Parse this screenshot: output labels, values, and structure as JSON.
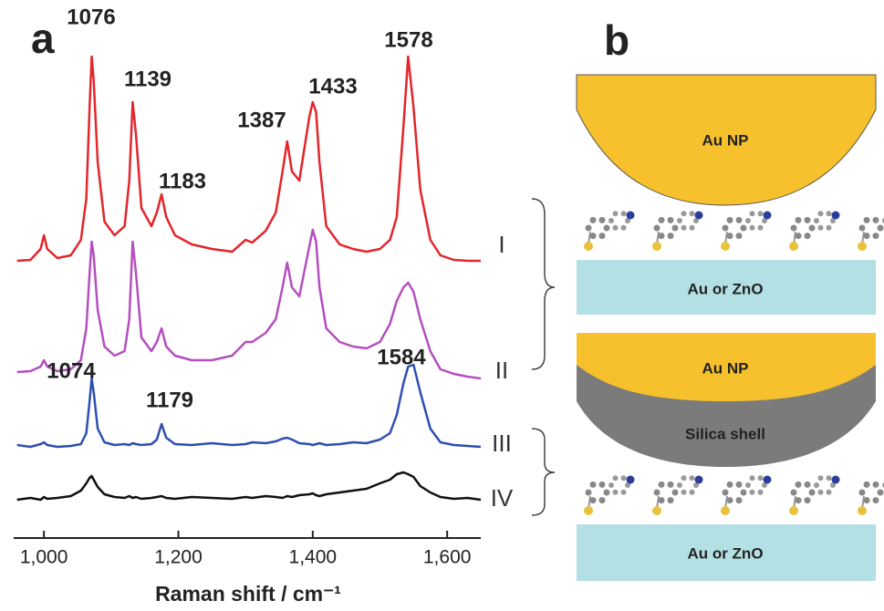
{
  "chart_data": {
    "type": "line",
    "panel_label": "a",
    "x_label": "Raman shift / cm⁻¹",
    "xlim": [
      955,
      1650
    ],
    "xticks": [
      {
        "value": 1000,
        "label": "1,000"
      },
      {
        "value": 1200,
        "label": "1,200"
      },
      {
        "value": 1400,
        "label": "1,400"
      },
      {
        "value": 1600,
        "label": "1,600"
      }
    ],
    "x": [
      960,
      980,
      995,
      1000,
      1005,
      1020,
      1040,
      1055,
      1063,
      1068,
      1071,
      1074,
      1080,
      1090,
      1105,
      1120,
      1127,
      1132,
      1137,
      1145,
      1160,
      1168,
      1175,
      1182,
      1195,
      1220,
      1250,
      1280,
      1300,
      1310,
      1330,
      1345,
      1355,
      1362,
      1369,
      1380,
      1395,
      1400,
      1405,
      1410,
      1420,
      1440,
      1460,
      1480,
      1500,
      1515,
      1525,
      1535,
      1542,
      1550,
      1560,
      1575,
      1590,
      1610,
      1630,
      1650
    ],
    "series": [
      {
        "name": "I",
        "color": "#e3262b",
        "values": [
          2,
          3,
          15,
          30,
          15,
          5,
          8,
          25,
          70,
          170,
          226,
          200,
          110,
          45,
          30,
          40,
          90,
          176,
          140,
          60,
          40,
          55,
          75,
          50,
          30,
          20,
          15,
          12,
          25,
          22,
          35,
          55,
          100,
          133,
          100,
          90,
          160,
          176,
          165,
          110,
          40,
          20,
          15,
          12,
          15,
          25,
          50,
          150,
          226,
          170,
          80,
          25,
          8,
          3,
          2,
          2
        ]
      },
      {
        "name": "II",
        "color": "#b44fc0",
        "values": [
          2,
          3,
          8,
          15,
          8,
          3,
          5,
          15,
          50,
          110,
          145,
          130,
          70,
          30,
          20,
          25,
          60,
          145,
          110,
          40,
          25,
          35,
          50,
          30,
          20,
          15,
          15,
          20,
          35,
          35,
          45,
          60,
          95,
          122,
          95,
          85,
          140,
          158,
          145,
          95,
          50,
          35,
          30,
          28,
          35,
          55,
          80,
          95,
          100,
          90,
          60,
          25,
          5,
          0,
          -3,
          -5
        ]
      },
      {
        "name": "III",
        "color": "#2e4fb0",
        "values": [
          2,
          0,
          3,
          5,
          2,
          0,
          1,
          3,
          15,
          50,
          75,
          60,
          20,
          5,
          2,
          3,
          2,
          4,
          3,
          2,
          3,
          8,
          25,
          10,
          3,
          2,
          4,
          2,
          3,
          5,
          4,
          6,
          9,
          10,
          8,
          4,
          3,
          2,
          3,
          4,
          2,
          3,
          5,
          4,
          8,
          15,
          35,
          70,
          88,
          90,
          60,
          20,
          5,
          2,
          1,
          0
        ]
      },
      {
        "name": "IV",
        "color": "#111111",
        "values": [
          0,
          2,
          0,
          3,
          1,
          2,
          4,
          10,
          18,
          24,
          26,
          22,
          14,
          6,
          3,
          2,
          4,
          2,
          3,
          1,
          2,
          3,
          4,
          2,
          1,
          3,
          2,
          1,
          3,
          2,
          4,
          3,
          2,
          4,
          3,
          5,
          6,
          7,
          5,
          4,
          6,
          8,
          10,
          12,
          18,
          22,
          28,
          30,
          28,
          25,
          15,
          8,
          3,
          1,
          2,
          0
        ]
      }
    ],
    "annotations": [
      1076,
      1139,
      1183,
      1387,
      1433,
      1578,
      1074,
      1179,
      1584
    ]
  },
  "diagram": {
    "panel_label": "b",
    "top": {
      "particle": "Au NP",
      "substrate": "Au or ZnO"
    },
    "bottom": {
      "particle": "Au NP",
      "shell": "Silica shell",
      "substrate": "Au or ZnO"
    }
  }
}
